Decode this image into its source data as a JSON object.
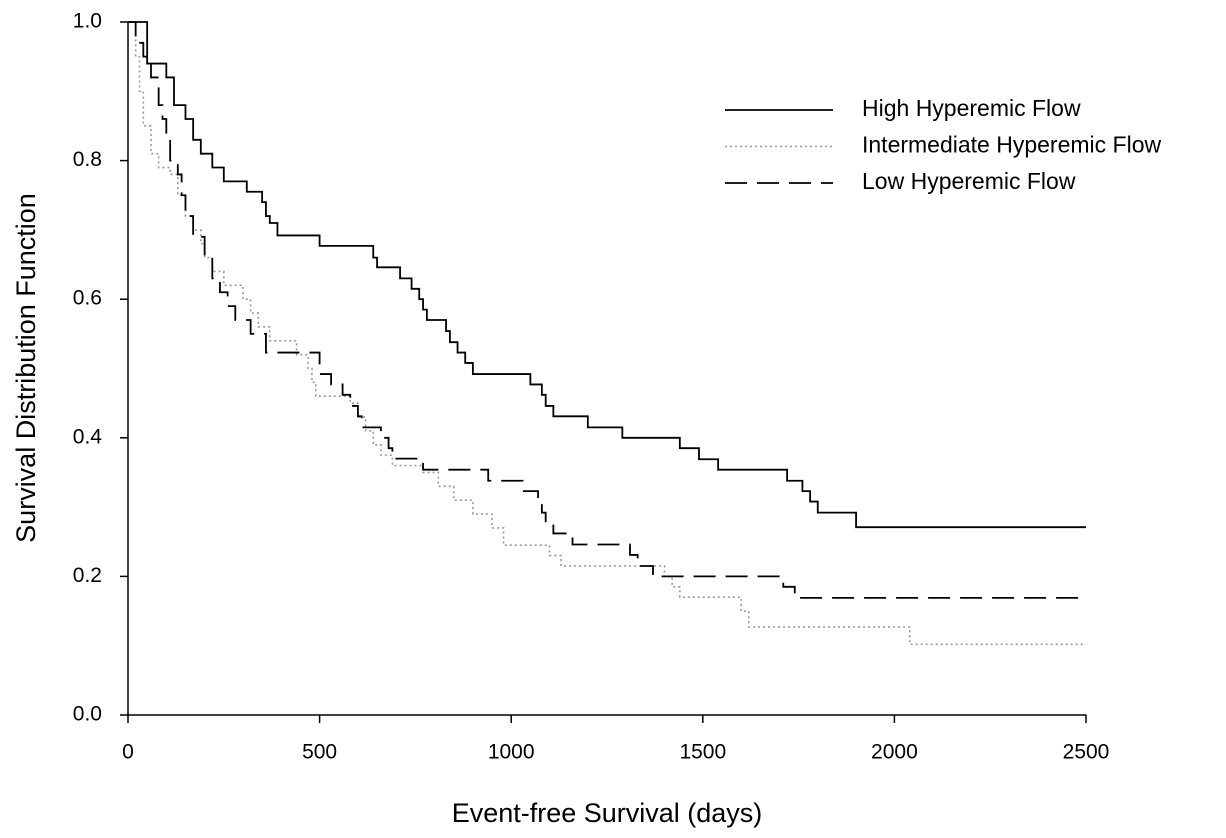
{
  "chart_data": {
    "type": "step",
    "xlabel": "Event-free Survival (days)",
    "ylabel": "Survival Distribution Function",
    "xlim": [
      0,
      2500
    ],
    "xticks": [
      0,
      500,
      1000,
      1500,
      2000,
      2500
    ],
    "ylim": [
      0,
      1
    ],
    "yticks": [
      {
        "value": 0,
        "label": "0.0"
      },
      {
        "value": 0.2,
        "label": "0.2"
      },
      {
        "value": 0.4,
        "label": "0.4"
      },
      {
        "value": 0.6,
        "label": "0.6"
      },
      {
        "value": 0.8,
        "label": "0.8"
      },
      {
        "value": 1,
        "label": "1.0"
      }
    ],
    "legend": "upper right",
    "series": [
      {
        "name": "High Hyperemic Flow",
        "color": "#000000",
        "dash": "solid",
        "x": [
          0,
          50,
          100,
          120,
          150,
          170,
          190,
          220,
          250,
          310,
          350,
          360,
          370,
          390,
          500,
          640,
          650,
          710,
          740,
          760,
          770,
          780,
          830,
          840,
          860,
          880,
          900,
          1050,
          1080,
          1090,
          1110,
          1200,
          1290,
          1440,
          1490,
          1540,
          1720,
          1760,
          1780,
          1800,
          1900,
          2500
        ],
        "values": [
          1.0,
          0.94,
          0.92,
          0.88,
          0.86,
          0.83,
          0.81,
          0.79,
          0.77,
          0.755,
          0.74,
          0.72,
          0.71,
          0.692,
          0.677,
          0.66,
          0.646,
          0.63,
          0.615,
          0.6,
          0.585,
          0.57,
          0.554,
          0.538,
          0.523,
          0.508,
          0.492,
          0.477,
          0.462,
          0.446,
          0.431,
          0.415,
          0.4,
          0.385,
          0.369,
          0.354,
          0.338,
          0.323,
          0.308,
          0.292,
          0.271,
          0.271
        ]
      },
      {
        "name": "Intermediate Hyperemic Flow",
        "color": "#999999",
        "dash": "dotted",
        "x": [
          0,
          20,
          30,
          40,
          60,
          80,
          110,
          130,
          150,
          170,
          190,
          200,
          220,
          250,
          300,
          320,
          340,
          370,
          440,
          470,
          480,
          490,
          580,
          600,
          620,
          640,
          660,
          690,
          770,
          810,
          850,
          900,
          950,
          980,
          1100,
          1130,
          1400,
          1420,
          1440,
          1600,
          1620,
          2040,
          2500
        ],
        "values": [
          1.0,
          0.95,
          0.9,
          0.85,
          0.81,
          0.79,
          0.78,
          0.75,
          0.72,
          0.7,
          0.68,
          0.66,
          0.64,
          0.62,
          0.6,
          0.58,
          0.56,
          0.54,
          0.52,
          0.5,
          0.48,
          0.46,
          0.45,
          0.43,
          0.41,
          0.39,
          0.375,
          0.36,
          0.35,
          0.33,
          0.31,
          0.29,
          0.27,
          0.245,
          0.23,
          0.215,
          0.2,
          0.185,
          0.17,
          0.15,
          0.127,
          0.102,
          0.102
        ]
      },
      {
        "name": "Low Hyperemic Flow",
        "color": "#000000",
        "dash": "dashed",
        "x": [
          0,
          20,
          40,
          60,
          80,
          90,
          100,
          110,
          130,
          140,
          150,
          170,
          200,
          220,
          240,
          260,
          280,
          320,
          360,
          500,
          530,
          560,
          580,
          600,
          610,
          660,
          680,
          690,
          770,
          940,
          1030,
          1070,
          1080,
          1090,
          1110,
          1160,
          1310,
          1330,
          1370,
          1710,
          1740,
          2500
        ],
        "values": [
          1.0,
          0.97,
          0.95,
          0.92,
          0.88,
          0.86,
          0.83,
          0.8,
          0.78,
          0.75,
          0.72,
          0.69,
          0.66,
          0.63,
          0.61,
          0.59,
          0.57,
          0.55,
          0.523,
          0.492,
          0.477,
          0.462,
          0.446,
          0.431,
          0.415,
          0.4,
          0.385,
          0.37,
          0.354,
          0.338,
          0.323,
          0.308,
          0.292,
          0.277,
          0.262,
          0.246,
          0.231,
          0.215,
          0.2,
          0.185,
          0.169,
          0.169
        ]
      }
    ]
  }
}
